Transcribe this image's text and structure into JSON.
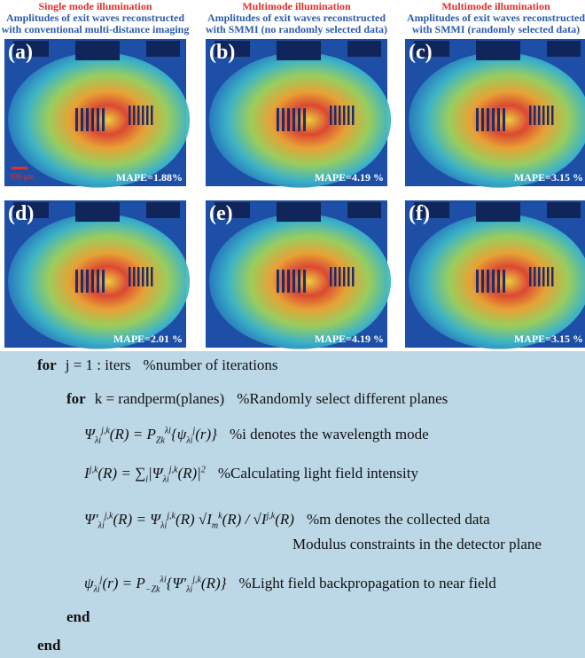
{
  "columns": [
    {
      "mode": "Single mode illumination",
      "caption_lines": [
        "Amplitudes of exit waves reconstructed",
        "with conventional multi-distance imaging"
      ]
    },
    {
      "mode": "Multimode illumination",
      "caption_lines": [
        "Amplitudes of exit waves reconstructed",
        "with SMMI (no randomly selected data)"
      ]
    },
    {
      "mode": "Multimode illumination",
      "caption_lines": [
        "Amplitudes of exit waves reconstructed",
        "with SMMI (randomly selected data)"
      ]
    }
  ],
  "panels": [
    {
      "label": "(a)",
      "mape": "MAPE=1.88%"
    },
    {
      "label": "(b)",
      "mape": "MAPE=4.19 %"
    },
    {
      "label": "(c)",
      "mape": "MAPE=3.15 %"
    },
    {
      "label": "(d)",
      "mape": "MAPE=2.01 %"
    },
    {
      "label": "(e)",
      "mape": "MAPE=4.19 %"
    },
    {
      "label": "(f)",
      "mape": "MAPE=3.15 %"
    }
  ],
  "scale_bar": "100 μm",
  "algorithm": [
    {
      "keyword": "for",
      "text": "j = 1 : iters",
      "comment": "%number of iterations"
    },
    {
      "keyword": "for",
      "text": "k = randperm(planes)",
      "comment": "%Randomly select different planes"
    },
    {
      "formula": "Ψ_{λi}^{j,k}(R) = P_{Zk}^{λi}{ψ_{λi}^{j}(r)}",
      "comment": "%i denotes the wavelength mode"
    },
    {
      "formula": "I^{j,k}(R) = ∑_{i}|Ψ_{λi}^{j,k}(R)|^{2}",
      "comment": "%Calculating light field intensity"
    },
    {
      "formula": "Ψ′_{λi}^{j,k}(R) = Ψ_{λi}^{j,k}(R) √I_{m}^{k}(R) / √I^{j,k}(R)",
      "comment": "%m denotes the collected data"
    },
    {
      "comment": "Modulus constraints in the detector plane"
    },
    {
      "formula": "ψ_{λi}^{j}(r) = P_{−Zk}^{λi}{Ψ′_{λi}^{j,k}(R)}",
      "comment": "%Light field backpropagation to near field"
    },
    {
      "keyword": "end"
    },
    {
      "keyword": "end"
    }
  ]
}
